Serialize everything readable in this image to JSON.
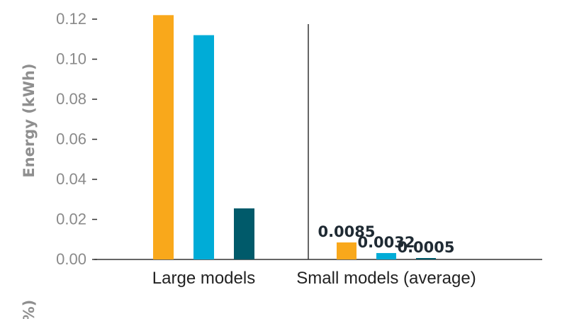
{
  "chart_data": {
    "type": "bar",
    "title": "",
    "xlabel": "",
    "ylabel": "Energy (kWh)",
    "ylim": [
      0,
      0.12
    ],
    "yticks": [
      "0.00",
      "0.02",
      "0.04",
      "0.06",
      "0.08",
      "0.10",
      "0.12"
    ],
    "grid": false,
    "legend": "none",
    "categories": [
      "Large models",
      "Small models (average)"
    ],
    "series": [
      {
        "color": "#F9A81B",
        "values": [
          0.122,
          0.0085
        ],
        "labels": [
          "",
          "0.0085"
        ]
      },
      {
        "color": "#00ACD7",
        "values": [
          0.112,
          0.0032
        ],
        "labels": [
          "",
          "0.0032"
        ]
      },
      {
        "color": "#005A6A",
        "values": [
          0.0255,
          0.0005
        ],
        "labels": [
          "",
          "0.0005"
        ]
      }
    ],
    "cutoff_text": "%)"
  }
}
